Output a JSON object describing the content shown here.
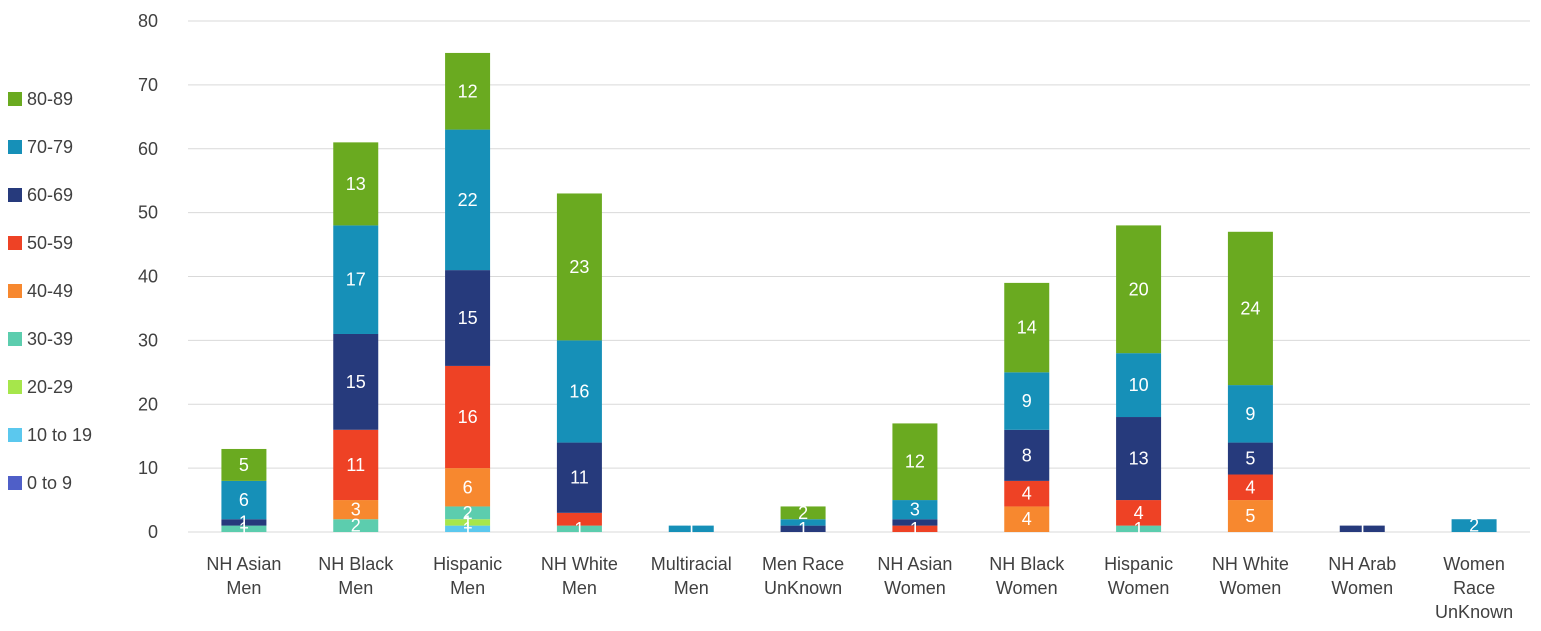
{
  "chart_data": {
    "type": "bar",
    "stacked": true,
    "title": "",
    "xlabel": "",
    "ylabel": "",
    "ylim": [
      0,
      80
    ],
    "yticks": [
      0,
      10,
      20,
      30,
      40,
      50,
      60,
      70,
      80
    ],
    "grid": true,
    "legend_position": "left",
    "categories": [
      [
        "NH Asian",
        "Men"
      ],
      [
        "NH Black",
        "Men"
      ],
      [
        "Hispanic",
        "Men"
      ],
      [
        "NH White",
        "Men"
      ],
      [
        "Multiracial",
        "Men"
      ],
      [
        "Men Race",
        "UnKnown"
      ],
      [
        "NH Asian",
        "Women"
      ],
      [
        "NH Black",
        "Women"
      ],
      [
        "Hispanic",
        "Women"
      ],
      [
        "NH White",
        "Women"
      ],
      [
        "NH Arab",
        "Women"
      ],
      [
        "Women",
        "Race",
        "UnKnown"
      ]
    ],
    "series": [
      {
        "name": "0 to 9",
        "color": "#4F5FC8",
        "values": [
          0,
          0,
          0,
          0,
          0,
          0,
          0,
          0,
          0,
          0,
          0,
          0
        ]
      },
      {
        "name": "10 to 19",
        "color": "#5BC8EE",
        "values": [
          0,
          0,
          1,
          0,
          0,
          0,
          0,
          0,
          0,
          0,
          0,
          0
        ]
      },
      {
        "name": "20-29",
        "color": "#A6E64B",
        "values": [
          0,
          0,
          1,
          0,
          0,
          0,
          0,
          0,
          0,
          0,
          0,
          0
        ]
      },
      {
        "name": "30-39",
        "color": "#5CCDAE",
        "values": [
          1,
          2,
          2,
          1,
          0,
          0,
          0,
          0,
          1,
          0,
          0,
          0
        ]
      },
      {
        "name": "40-49",
        "color": "#F7882F",
        "values": [
          0,
          3,
          6,
          0,
          0,
          0,
          0,
          4,
          0,
          5,
          0,
          0
        ]
      },
      {
        "name": "50-59",
        "color": "#EE4225",
        "values": [
          0,
          11,
          16,
          2,
          0,
          0,
          1,
          4,
          4,
          4,
          0,
          0
        ]
      },
      {
        "name": "60-69",
        "color": "#263A7C",
        "values": [
          1,
          15,
          15,
          11,
          0,
          1,
          1,
          8,
          13,
          5,
          1,
          0
        ]
      },
      {
        "name": "70-79",
        "color": "#1690B8",
        "values": [
          6,
          17,
          22,
          16,
          1,
          1,
          3,
          9,
          10,
          9,
          0,
          2
        ]
      },
      {
        "name": "80-89",
        "color": "#6AAA20",
        "values": [
          5,
          13,
          12,
          23,
          0,
          2,
          12,
          14,
          20,
          24,
          0,
          0
        ]
      }
    ],
    "data_labels": [
      {
        "category": 0,
        "series": 3,
        "text": "1"
      },
      {
        "category": 0,
        "series": 6,
        "text": "1"
      },
      {
        "category": 0,
        "series": 7,
        "text": "6"
      },
      {
        "category": 0,
        "series": 8,
        "text": "5"
      },
      {
        "category": 1,
        "series": 3,
        "text": "2"
      },
      {
        "category": 1,
        "series": 4,
        "text": "3"
      },
      {
        "category": 1,
        "series": 5,
        "text": "11"
      },
      {
        "category": 1,
        "series": 6,
        "text": "15"
      },
      {
        "category": 1,
        "series": 7,
        "text": "17"
      },
      {
        "category": 1,
        "series": 8,
        "text": "13"
      },
      {
        "category": 2,
        "series": 1,
        "text": "1"
      },
      {
        "category": 2,
        "series": 2,
        "text": "1"
      },
      {
        "category": 2,
        "series": 3,
        "text": "2"
      },
      {
        "category": 2,
        "series": 4,
        "text": "6"
      },
      {
        "category": 2,
        "series": 5,
        "text": "16"
      },
      {
        "category": 2,
        "series": 6,
        "text": "15"
      },
      {
        "category": 2,
        "series": 7,
        "text": "22"
      },
      {
        "category": 2,
        "series": 8,
        "text": "12"
      },
      {
        "category": 3,
        "series": 3,
        "text": "1"
      },
      {
        "category": 3,
        "series": 6,
        "text": "11"
      },
      {
        "category": 3,
        "series": 7,
        "text": "16"
      },
      {
        "category": 3,
        "series": 8,
        "text": "23"
      },
      {
        "category": 4,
        "series": 7,
        "text": "1"
      },
      {
        "category": 5,
        "series": 6,
        "text": "1"
      },
      {
        "category": 5,
        "series": 8,
        "text": "2"
      },
      {
        "category": 6,
        "series": 5,
        "text": "1"
      },
      {
        "category": 6,
        "series": 7,
        "text": "3"
      },
      {
        "category": 6,
        "series": 8,
        "text": "12"
      },
      {
        "category": 7,
        "series": 4,
        "text": "4"
      },
      {
        "category": 7,
        "series": 5,
        "text": "4"
      },
      {
        "category": 7,
        "series": 6,
        "text": "8"
      },
      {
        "category": 7,
        "series": 7,
        "text": "9"
      },
      {
        "category": 7,
        "series": 8,
        "text": "14"
      },
      {
        "category": 8,
        "series": 3,
        "text": "1"
      },
      {
        "category": 8,
        "series": 5,
        "text": "4"
      },
      {
        "category": 8,
        "series": 6,
        "text": "13"
      },
      {
        "category": 8,
        "series": 7,
        "text": "10"
      },
      {
        "category": 8,
        "series": 8,
        "text": "20"
      },
      {
        "category": 9,
        "series": 4,
        "text": "5"
      },
      {
        "category": 9,
        "series": 5,
        "text": "4"
      },
      {
        "category": 9,
        "series": 6,
        "text": "5"
      },
      {
        "category": 9,
        "series": 7,
        "text": "9"
      },
      {
        "category": 9,
        "series": 8,
        "text": "24"
      },
      {
        "category": 10,
        "series": 6,
        "text": "1"
      },
      {
        "category": 11,
        "series": 7,
        "text": "2"
      }
    ],
    "legend_order": [
      "80-89",
      "70-79",
      "60-69",
      "50-59",
      "40-49",
      "30-39",
      "20-29",
      "10 to 19",
      "0 to 9"
    ],
    "colors": {
      "gridline": "#D9D9D9",
      "axis_text": "#404040",
      "label_text": "#FFFFFF"
    }
  }
}
